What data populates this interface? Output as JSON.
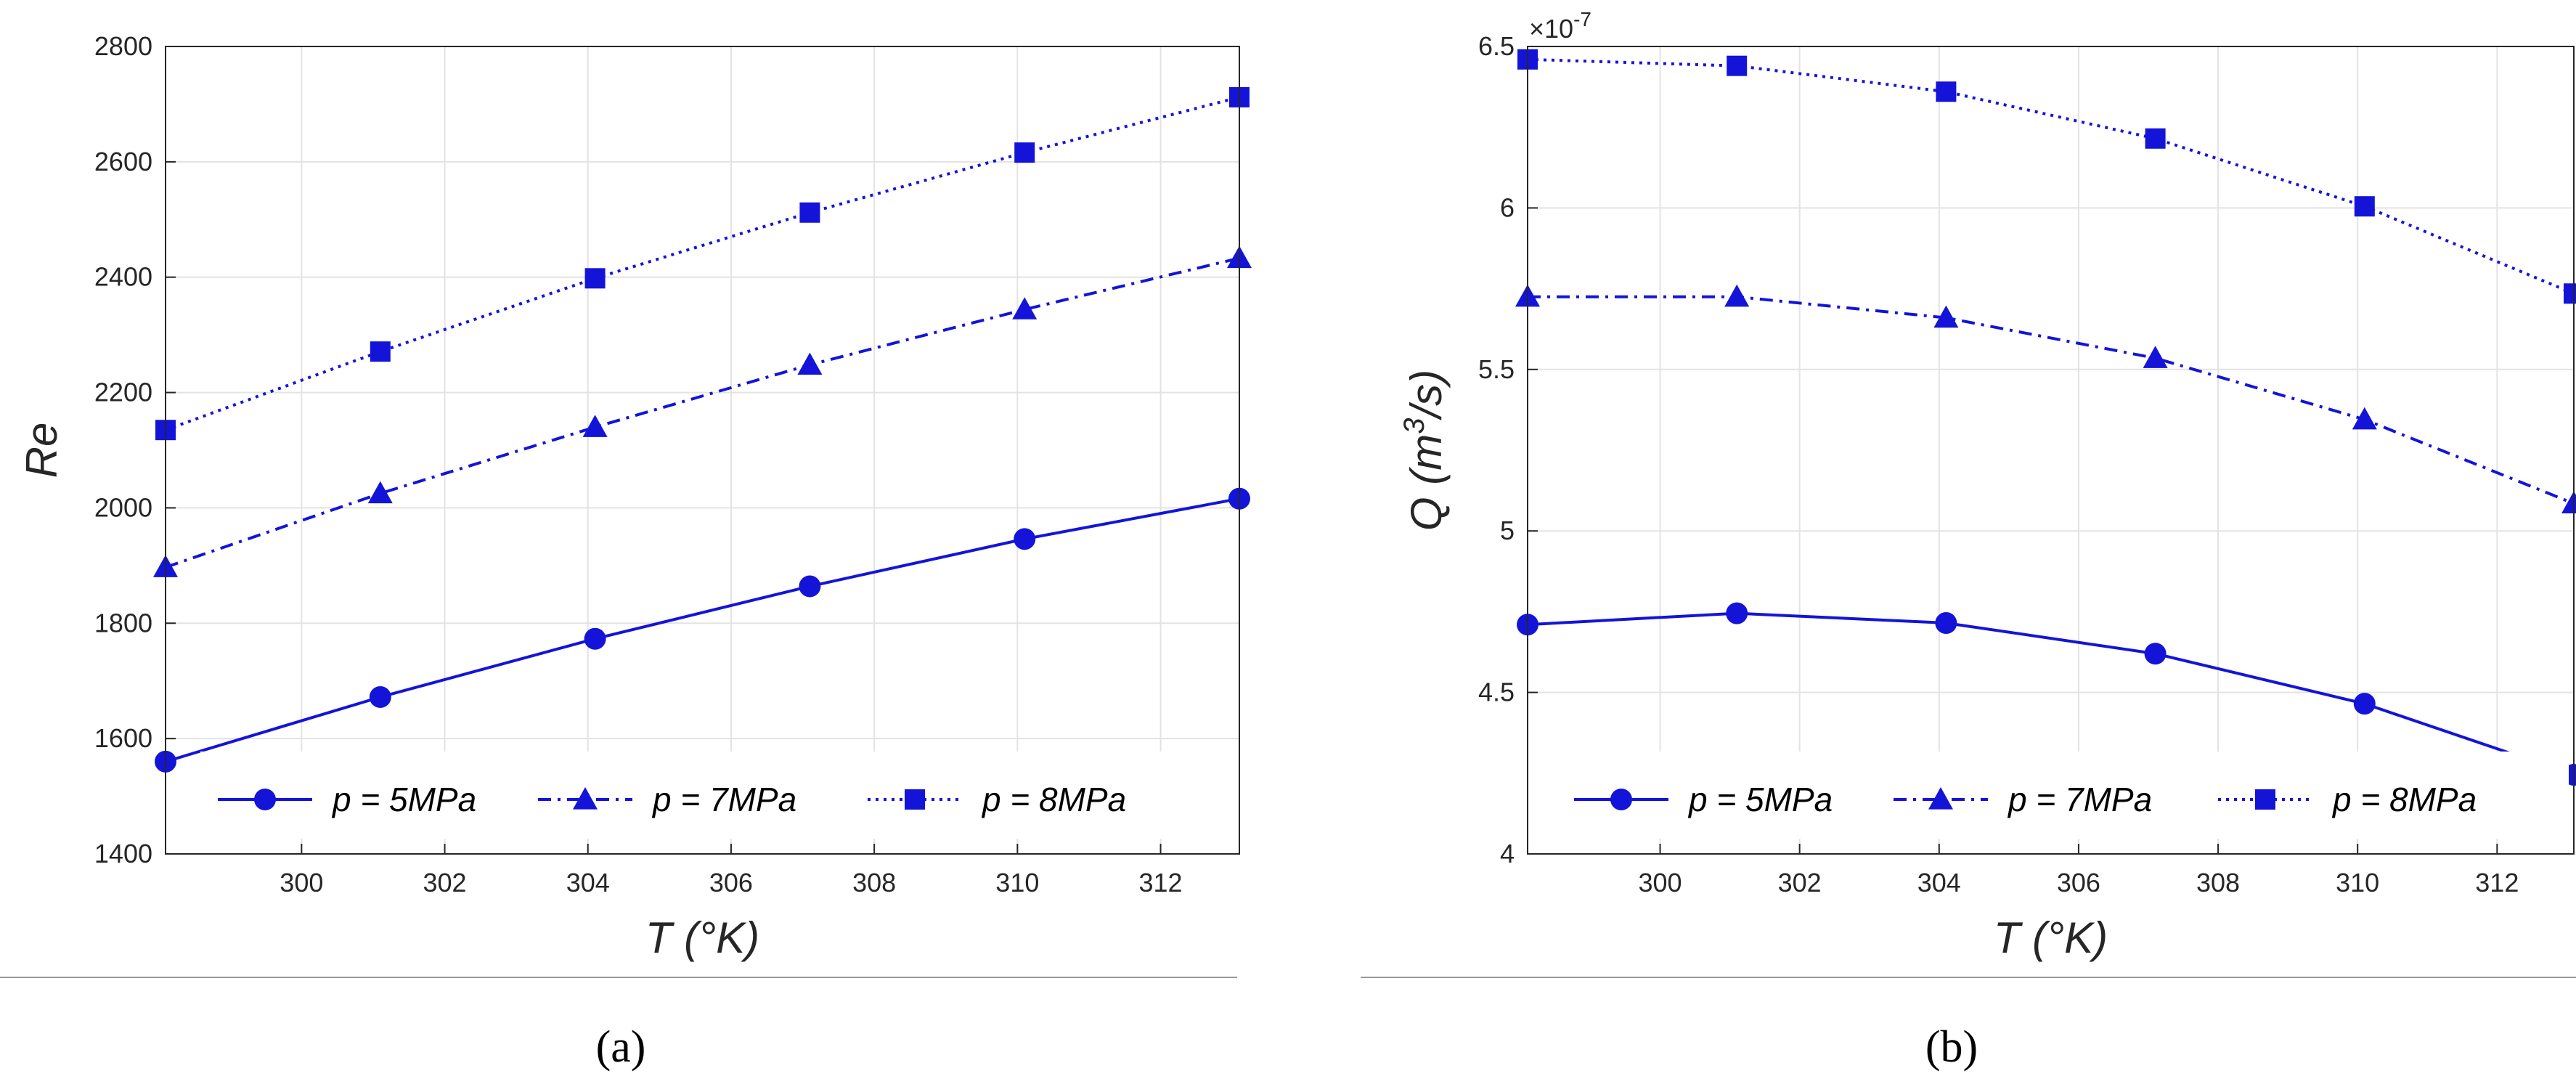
{
  "colors": {
    "series": "#1414d8",
    "axis": "#262626",
    "grid": "#e3e3e3",
    "rule": "#9a9a9a"
  },
  "chart_data": [
    {
      "type": "line",
      "panel": "(a)",
      "caption": "(a)",
      "xlabel": "T (°K)",
      "ylabel": "Re",
      "xlim": [
        298.1,
        313.1
      ],
      "ylim": [
        1400,
        2800
      ],
      "xticks": [
        300,
        302,
        304,
        306,
        308,
        310,
        312
      ],
      "yticks": [
        1400,
        1600,
        1800,
        2000,
        2200,
        2400,
        2600,
        2800
      ],
      "x": [
        298.1,
        301.1,
        304.1,
        307.1,
        310.1,
        313.1
      ],
      "legend_position": "bottom",
      "series": [
        {
          "name": "p = 5MPa",
          "marker": "circle",
          "linestyle": "solid",
          "values": [
            1560,
            1672,
            1773,
            1864,
            1946,
            2016
          ]
        },
        {
          "name": "p = 7MPa",
          "marker": "triangle",
          "linestyle": "dashdot",
          "values": [
            1897,
            2025,
            2140,
            2248,
            2344,
            2433
          ]
        },
        {
          "name": "p = 8MPa",
          "marker": "square",
          "linestyle": "dotted",
          "values": [
            2135,
            2271,
            2398,
            2512,
            2616,
            2712
          ]
        }
      ]
    },
    {
      "type": "line",
      "panel": "(b)",
      "caption": "(b)",
      "xlabel": "T (°K)",
      "ylabel": "Q (m3/s)",
      "y_multiplier": "×10-7",
      "xlim": [
        298.1,
        313.1
      ],
      "ylim": [
        4,
        6.5
      ],
      "xticks": [
        300,
        302,
        304,
        306,
        308,
        310,
        312
      ],
      "yticks": [
        4,
        4.5,
        5,
        5.5,
        6,
        6.5
      ],
      "x": [
        298.1,
        301.1,
        304.1,
        307.1,
        310.1,
        313.1
      ],
      "legend_position": "bottom",
      "series": [
        {
          "name": "p = 5MPa",
          "marker": "circle",
          "linestyle": "solid",
          "values": [
            4.71,
            4.745,
            4.715,
            4.62,
            4.465,
            4.245
          ]
        },
        {
          "name": "p = 7MPa",
          "marker": "triangle",
          "linestyle": "dashdot",
          "values": [
            5.725,
            5.725,
            5.66,
            5.535,
            5.345,
            5.085
          ]
        },
        {
          "name": "p = 8MPa",
          "marker": "square",
          "linestyle": "dotted",
          "values": [
            6.46,
            6.44,
            6.36,
            6.215,
            6.005,
            5.735
          ]
        }
      ]
    }
  ]
}
